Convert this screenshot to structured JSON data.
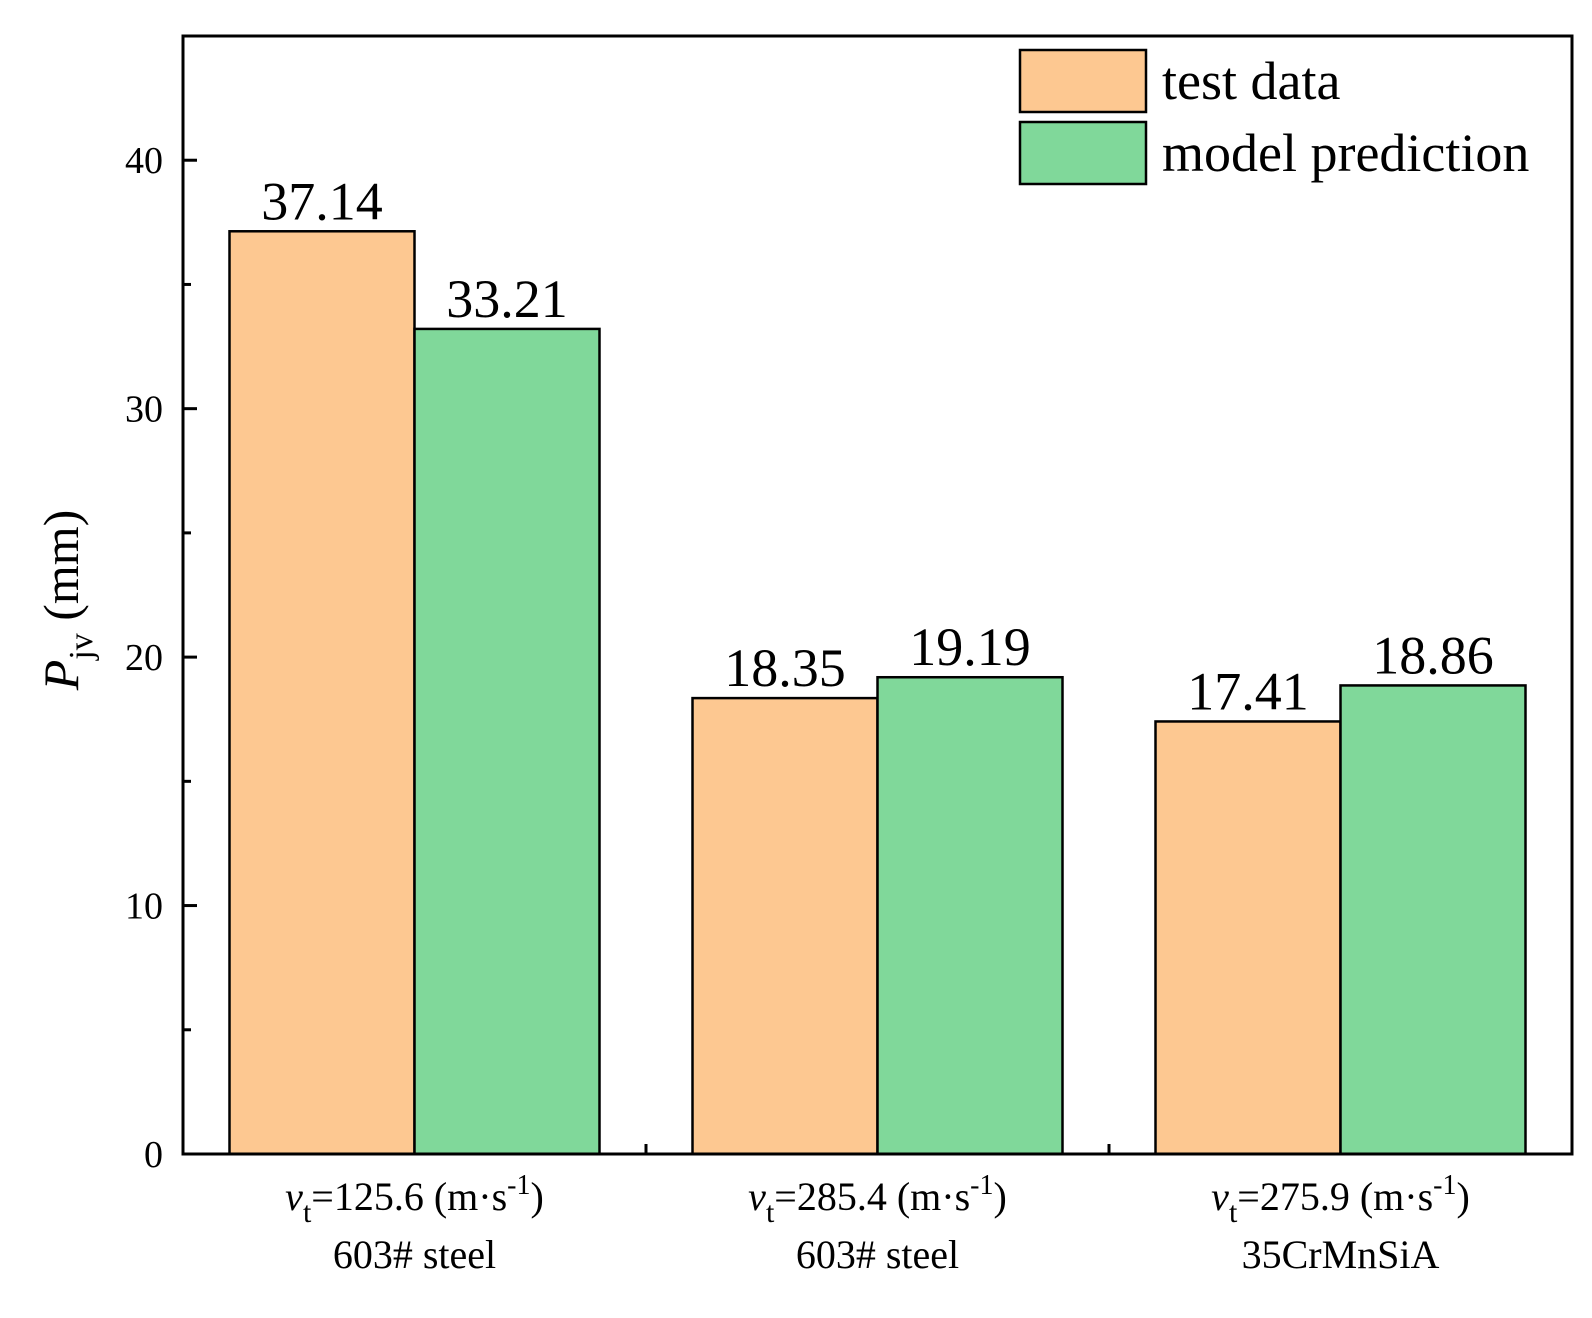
{
  "chart_data": {
    "type": "bar",
    "title": "",
    "xlabel": "",
    "ylabel": {
      "symbol": "P",
      "subscript": "jv",
      "unit": "(mm)"
    },
    "ylim": [
      0,
      45
    ],
    "y_major_ticks": [
      0,
      10,
      20,
      30,
      40
    ],
    "y_minor_ticks": [
      5,
      15,
      25,
      35
    ],
    "grid": false,
    "legend_position": "top-right",
    "categories": [
      {
        "symbol": "v",
        "subscript": "t",
        "value_text": "=125.6 (m·s",
        "exponent": "-1",
        "close": ")",
        "material": "603# steel"
      },
      {
        "symbol": "v",
        "subscript": "t",
        "value_text": "=285.4 (m·s",
        "exponent": "-1",
        "close": ")",
        "material": "603# steel"
      },
      {
        "symbol": "v",
        "subscript": "t",
        "value_text": "=275.9 (m·s",
        "exponent": "-1",
        "close": ")",
        "material": "35CrMnSiA"
      }
    ],
    "series": [
      {
        "name": "test data",
        "color": "#FDC891",
        "values": [
          37.14,
          18.35,
          17.41
        ],
        "labels": [
          "37.14",
          "18.35",
          "17.41"
        ]
      },
      {
        "name": "model prediction",
        "color": "#80D89A",
        "values": [
          33.21,
          19.19,
          18.86
        ],
        "labels": [
          "33.21",
          "19.19",
          "18.86"
        ]
      }
    ]
  }
}
